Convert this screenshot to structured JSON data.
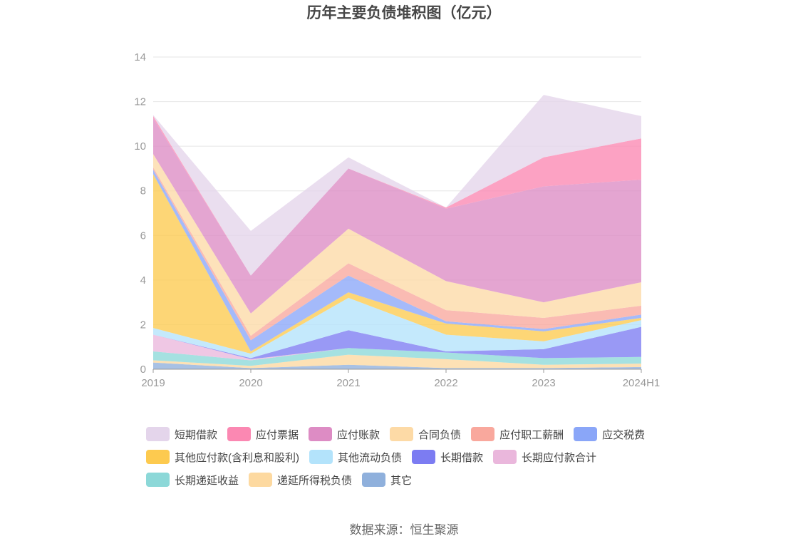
{
  "title": "历年主要负债堆积图（亿元）",
  "source": "数据来源：恒生聚源",
  "chart_data": {
    "type": "area",
    "stacked": true,
    "categories": [
      "2019",
      "2020",
      "2021",
      "2022",
      "2023",
      "2024H1"
    ],
    "ylim": [
      0,
      14
    ],
    "yticks": [
      0,
      2,
      4,
      6,
      8,
      10,
      12,
      14
    ],
    "grid": true,
    "legend_position": "bottom",
    "series": [
      {
        "name": "其它",
        "color": "#8fb0dc",
        "values": [
          0.3,
          0.05,
          0.2,
          0.05,
          0.05,
          0.1
        ]
      },
      {
        "name": "递延所得税负债",
        "color": "#fdd9a0",
        "values": [
          0.1,
          0.1,
          0.45,
          0.4,
          0.15,
          0.15
        ]
      },
      {
        "name": "长期递延收益",
        "color": "#8cd8d8",
        "values": [
          0.4,
          0.25,
          0.3,
          0.3,
          0.3,
          0.3
        ]
      },
      {
        "name": "长期应付款合计",
        "color": "#eab7dc",
        "values": [
          0.75,
          0.05,
          0.0,
          0.0,
          0.0,
          0.0
        ]
      },
      {
        "name": "长期借款",
        "color": "#7c7cf2",
        "values": [
          0.0,
          0.05,
          0.8,
          0.05,
          0.4,
          1.35
        ]
      },
      {
        "name": "其他流动负债",
        "color": "#b3e3fb",
        "values": [
          0.3,
          0.2,
          1.45,
          0.75,
          0.35,
          0.3
        ]
      },
      {
        "name": "其他应付款(含利息和股利)",
        "color": "#fdca4f",
        "values": [
          6.9,
          0.1,
          0.25,
          0.5,
          0.45,
          0.1
        ]
      },
      {
        "name": "应交税费",
        "color": "#8aa6f8",
        "values": [
          0.2,
          0.5,
          0.75,
          0.1,
          0.1,
          0.15
        ]
      },
      {
        "name": "应付职工薪酬",
        "color": "#f9a89d",
        "values": [
          0.1,
          0.2,
          0.55,
          0.5,
          0.5,
          0.4
        ]
      },
      {
        "name": "合同负债",
        "color": "#fddaa6",
        "values": [
          0.6,
          1.0,
          1.55,
          1.3,
          0.7,
          1.05
        ]
      },
      {
        "name": "应付账款",
        "color": "#dd8cc4",
        "values": [
          1.6,
          1.7,
          2.7,
          3.25,
          5.2,
          4.6
        ]
      },
      {
        "name": "应付票据",
        "color": "#fb88b2",
        "values": [
          0.1,
          0.0,
          0.0,
          0.05,
          1.3,
          1.85
        ]
      },
      {
        "name": "短期借款",
        "color": "#e4d5eb",
        "values": [
          0.05,
          2.0,
          0.5,
          0.0,
          2.8,
          1.0
        ]
      }
    ]
  },
  "legend_order": [
    "短期借款",
    "应付票据",
    "应付账款",
    "合同负债",
    "应付职工薪酬",
    "应交税费",
    "其他应付款(含利息和股利)",
    "其他流动负债",
    "长期借款",
    "长期应付款合计",
    "长期递延收益",
    "递延所得税负债",
    "其它"
  ]
}
